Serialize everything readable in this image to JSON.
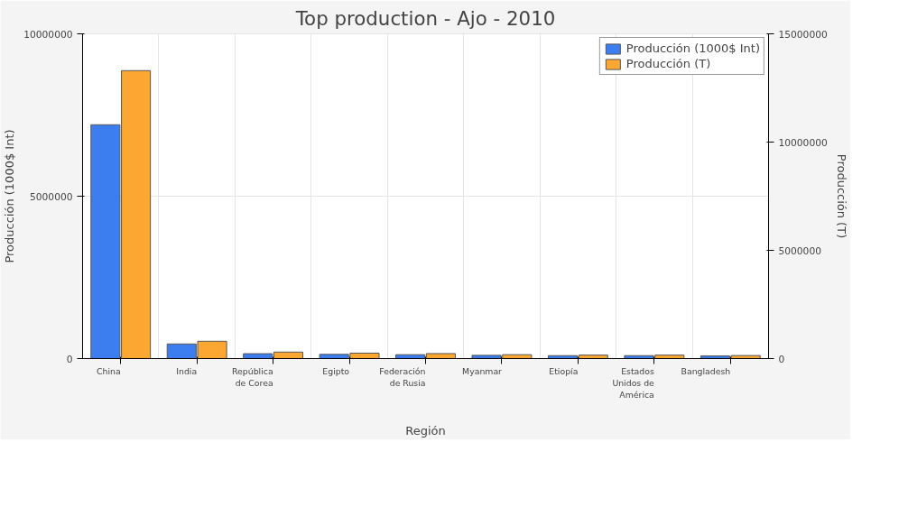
{
  "chart_data": {
    "type": "bar",
    "title": "Top production - Ajo - 2010",
    "xlabel": "Región",
    "ylabel": "Producción (1000$ Int)",
    "y2label": "Producción (T)",
    "categories": [
      "China",
      "India",
      "República de Corea",
      "Egipto",
      "Federación de Rusia",
      "Myanmar",
      "Etiopía",
      "Estados Unidos de América",
      "Bangladesh"
    ],
    "series": [
      {
        "name": "Producción (1000$ Int)",
        "color": "#3c7ef0",
        "values": [
          7200000,
          450000,
          150000,
          130000,
          120000,
          100000,
          90000,
          90000,
          80000
        ]
      },
      {
        "name": "Producción (T)",
        "color": "#fba732",
        "axis": "y2",
        "values": [
          13300000,
          800000,
          300000,
          250000,
          230000,
          180000,
          160000,
          160000,
          140000
        ]
      }
    ],
    "ylim": [
      0,
      10000000
    ],
    "yticks": [
      0,
      5000000,
      10000000
    ],
    "y2lim": [
      0,
      15000000
    ],
    "y2ticks": [
      0,
      5000000,
      10000000,
      15000000
    ],
    "grid": true,
    "legend": "top right"
  }
}
